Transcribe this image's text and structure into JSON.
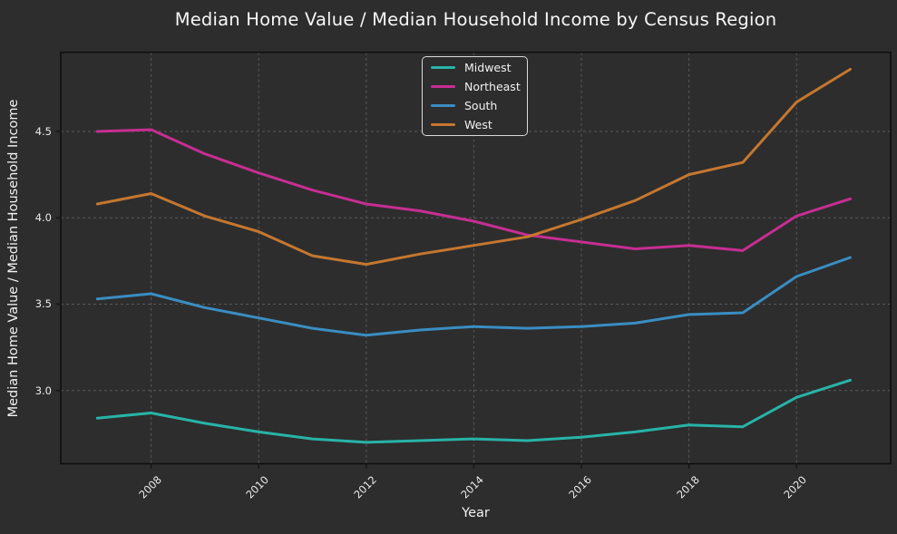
{
  "theme": {
    "background": "#2d2d2d",
    "text": "#f2f2f2",
    "grid": "#595959",
    "spine": "#0e0e0e",
    "tick": "#151515",
    "legend_border": "#d9d9d9"
  },
  "chart_data": {
    "type": "line",
    "title": "Median Home Value / Median Household Income by Census Region",
    "xlabel": "Year",
    "ylabel": "Median Home Value / Median Household Income",
    "x": [
      2007,
      2008,
      2009,
      2010,
      2011,
      2012,
      2013,
      2014,
      2015,
      2016,
      2017,
      2018,
      2019,
      2020,
      2021
    ],
    "series": [
      {
        "name": "Midwest",
        "color": "#28b3a8",
        "values": [
          2.84,
          2.87,
          2.81,
          2.76,
          2.72,
          2.7,
          2.71,
          2.72,
          2.71,
          2.73,
          2.76,
          2.8,
          2.79,
          2.96,
          3.06
        ]
      },
      {
        "name": "Northeast",
        "color": "#c62e92",
        "values": [
          4.5,
          4.51,
          4.37,
          4.26,
          4.16,
          4.08,
          4.04,
          3.98,
          3.9,
          3.86,
          3.82,
          3.84,
          3.81,
          4.01,
          4.11
        ]
      },
      {
        "name": "South",
        "color": "#3a8dc2",
        "values": [
          3.53,
          3.56,
          3.48,
          3.42,
          3.36,
          3.32,
          3.35,
          3.37,
          3.36,
          3.37,
          3.39,
          3.44,
          3.45,
          3.66,
          3.77
        ]
      },
      {
        "name": "West",
        "color": "#c5772f",
        "values": [
          4.08,
          4.14,
          4.01,
          3.92,
          3.78,
          3.73,
          3.79,
          3.84,
          3.89,
          3.99,
          4.1,
          4.25,
          4.32,
          4.67,
          4.86
        ]
      }
    ],
    "xticks": [
      2008,
      2010,
      2012,
      2014,
      2016,
      2018,
      2020
    ],
    "yticks": [
      3.0,
      3.5,
      4.0,
      4.5
    ],
    "xlim": [
      2006.32,
      2021.75
    ],
    "ylim": [
      2.576,
      4.958
    ],
    "grid": true,
    "grid_style": "dashed",
    "legend_position": "upper center",
    "legend_labels": [
      "Midwest",
      "Northeast",
      "South",
      "West"
    ]
  }
}
